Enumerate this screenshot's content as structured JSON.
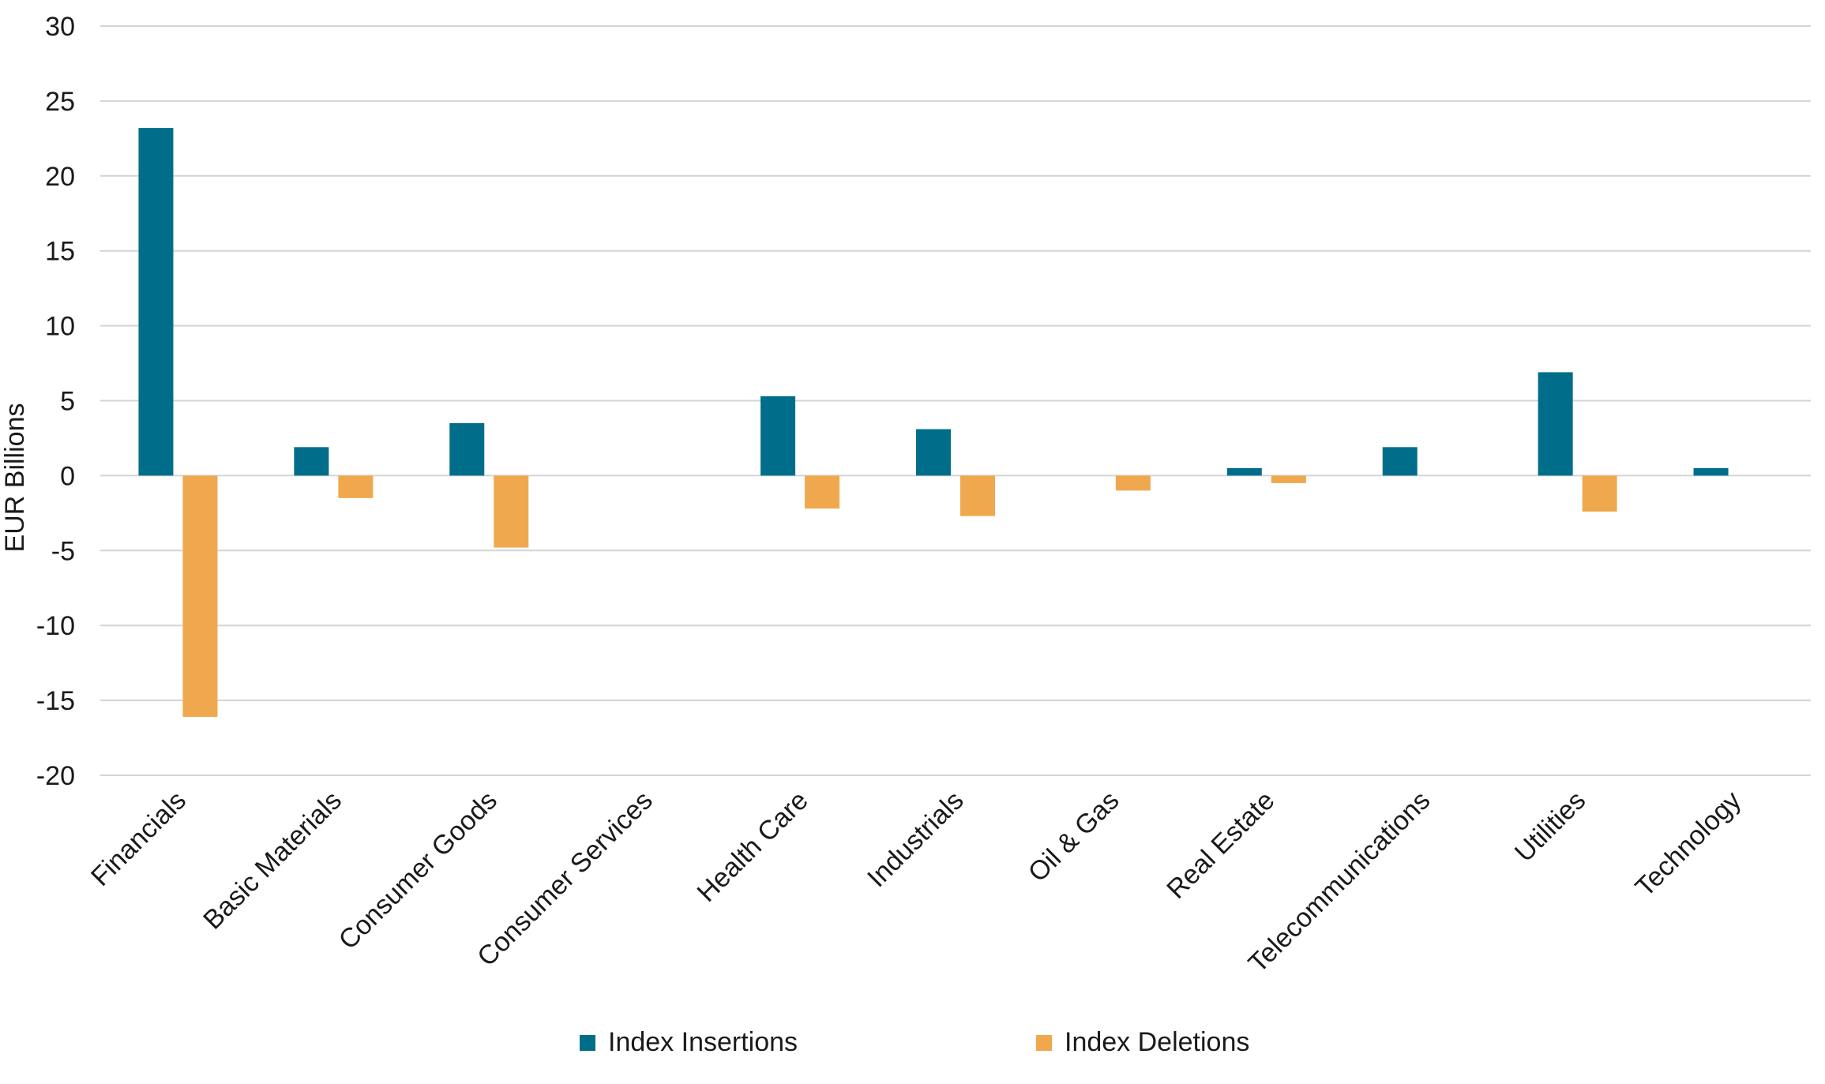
{
  "chart_data": {
    "type": "bar",
    "title": "",
    "xlabel": "",
    "ylabel": "EUR Billions",
    "ylim": [
      -20,
      30
    ],
    "yticks": [
      30,
      25,
      20,
      15,
      10,
      5,
      0,
      -5,
      -10,
      -15,
      -20
    ],
    "grid": true,
    "legend_position": "bottom",
    "categories": [
      "Financials",
      "Basic Materials",
      "Consumer Goods",
      "Consumer Services",
      "Health Care",
      "Industrials",
      "Oil & Gas",
      "Real Estate",
      "Telecommunications",
      "Utilities",
      "Technology"
    ],
    "series": [
      {
        "name": "Index Insertions",
        "color": "#006e8a",
        "values": [
          23.2,
          1.9,
          3.5,
          0,
          5.3,
          3.1,
          0,
          0.5,
          1.9,
          6.9,
          0.5
        ]
      },
      {
        "name": "Index Deletions",
        "color": "#f0a84e",
        "values": [
          -16.1,
          -1.5,
          -4.8,
          0,
          -2.2,
          -2.7,
          -1.0,
          -0.5,
          0,
          -2.4,
          0
        ]
      }
    ]
  },
  "colors": {
    "grid": "#d4d4d4",
    "text": "#1a1a1a"
  }
}
